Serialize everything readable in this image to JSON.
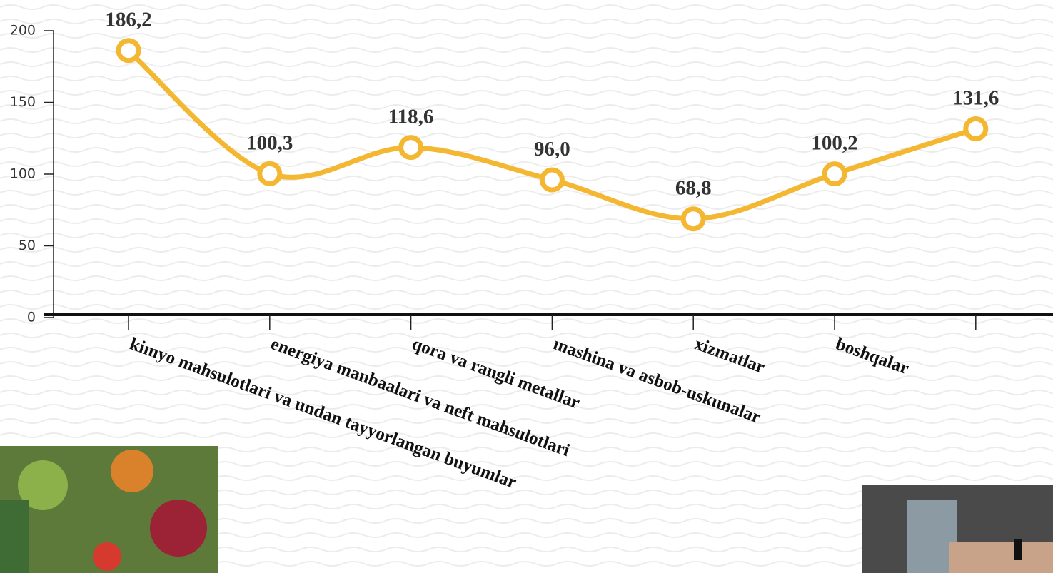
{
  "chart_data": {
    "type": "line",
    "categories": [
      "kimyo mahsulotlari va undan tayyorlangan buyumlar",
      "energiya manbaalari va neft mahsulotlari",
      "qora va rangli metallar",
      "mashina va asbob-uskunalar",
      "xizmatlar",
      "boshqalar",
      null
    ],
    "values": [
      186.2,
      100.3,
      118.6,
      96.0,
      68.8,
      100.2,
      131.6
    ],
    "value_labels": [
      "186,2",
      "100,3",
      "118,6",
      "96,0",
      "68,8",
      "100,2",
      "131,6"
    ],
    "color": "#f4b731",
    "ylim": [
      0,
      200
    ],
    "yticks": [
      0,
      50,
      100,
      150,
      200
    ]
  }
}
